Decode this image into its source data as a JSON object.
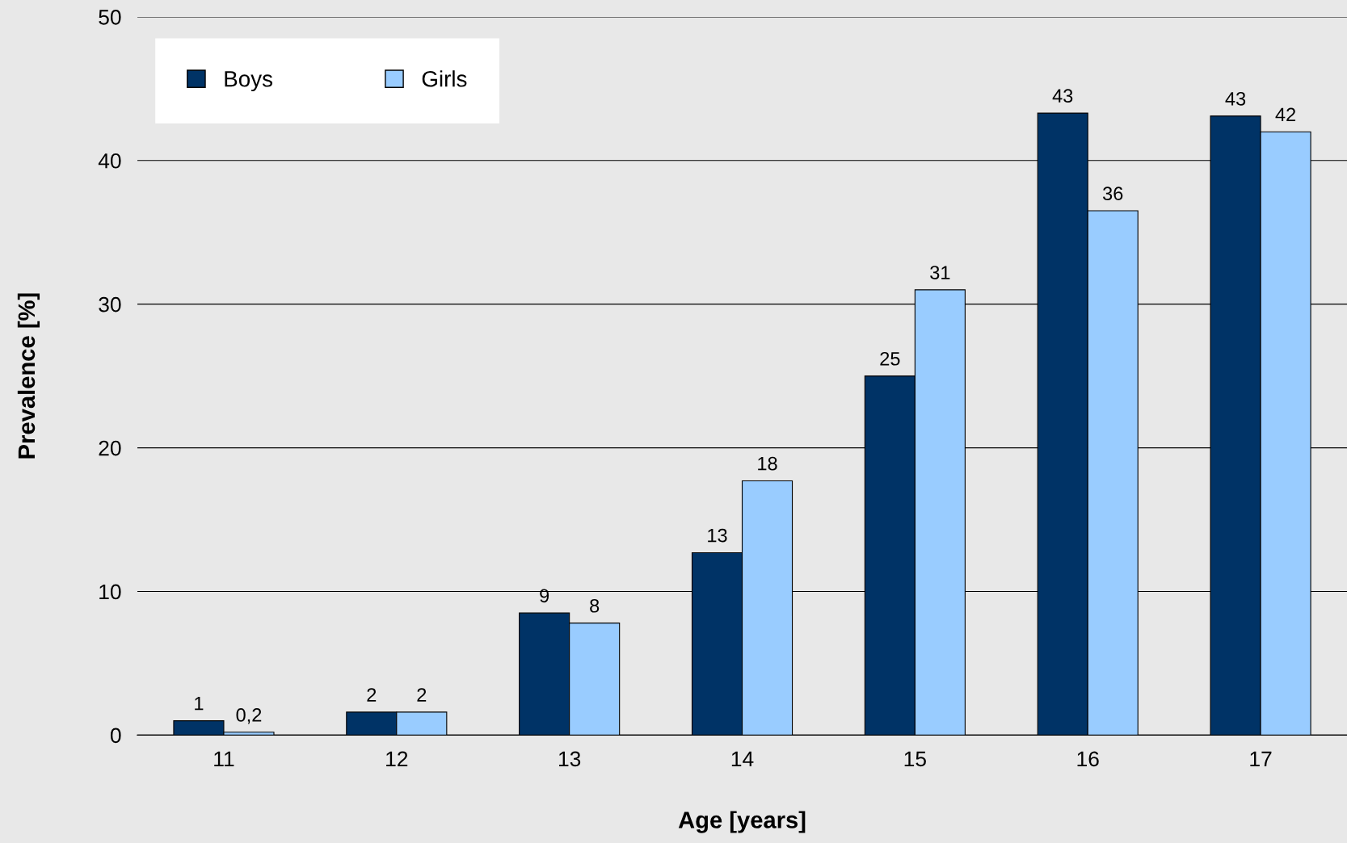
{
  "chart_data": {
    "type": "bar",
    "xlabel": "Age [years]",
    "ylabel": "Prevalence [%]",
    "categories": [
      "11",
      "12",
      "13",
      "14",
      "15",
      "16",
      "17"
    ],
    "series": [
      {
        "name": "Boys",
        "color": "#003366",
        "values": [
          1.0,
          1.6,
          8.5,
          12.7,
          25.0,
          43.3,
          43.1
        ],
        "value_labels": [
          "1",
          "2",
          "9",
          "13",
          "25",
          "43",
          "43"
        ]
      },
      {
        "name": "Girls",
        "color": "#99ccff",
        "values": [
          0.2,
          1.6,
          7.8,
          17.7,
          31.0,
          36.5,
          42.0
        ],
        "value_labels": [
          "0,2",
          "2",
          "8",
          "18",
          "31",
          "36",
          "42"
        ]
      }
    ],
    "ylim": [
      0,
      50
    ],
    "yticks": [
      0,
      10,
      20,
      30,
      40,
      50
    ],
    "grid": "y",
    "legend": "top left"
  }
}
